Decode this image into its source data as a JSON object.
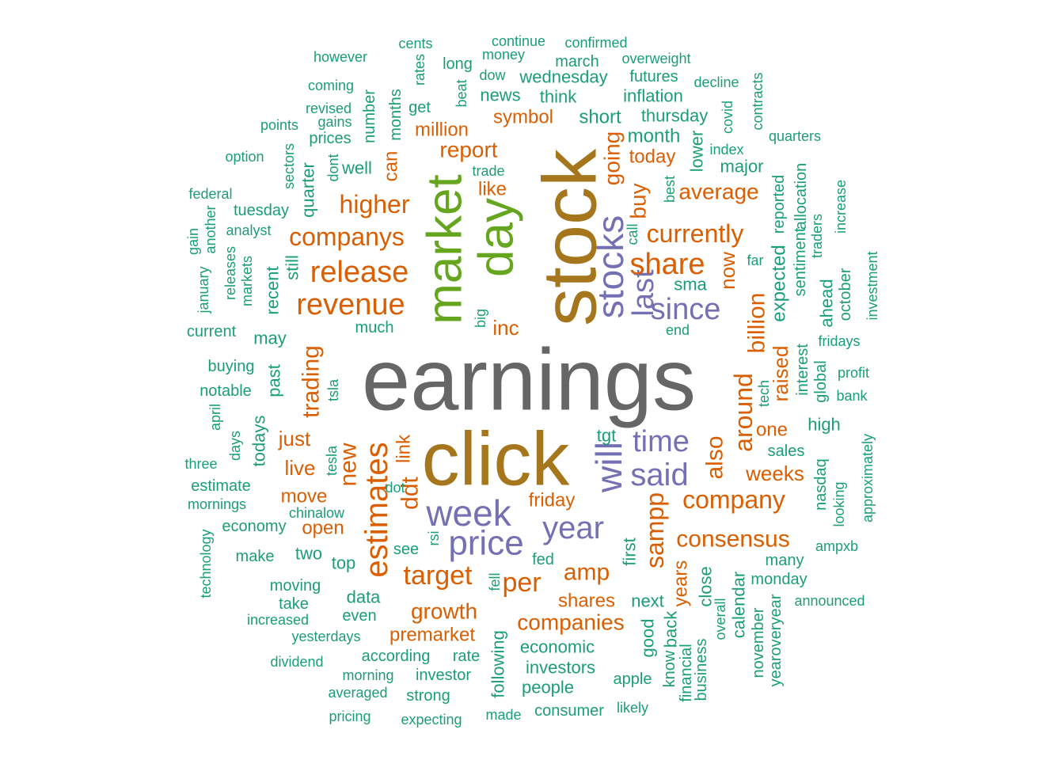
{
  "colors": {
    "gray": "#666666",
    "gold": "#A6761D",
    "green": "#66A61E",
    "purple": "#7570B3",
    "orange": "#D95F02",
    "teal": "#1B9E77"
  },
  "words": [
    {
      "text": "earnings",
      "color": "gray"
    },
    {
      "text": "stock",
      "color": "gold"
    },
    {
      "text": "click",
      "color": "gold"
    },
    {
      "text": "market",
      "color": "green"
    },
    {
      "text": "day",
      "color": "green"
    },
    {
      "text": "stocks",
      "color": "purple"
    },
    {
      "text": "will",
      "color": "purple"
    },
    {
      "text": "week",
      "color": "purple"
    },
    {
      "text": "price",
      "color": "purple"
    },
    {
      "text": "year",
      "color": "purple"
    },
    {
      "text": "said",
      "color": "purple"
    },
    {
      "text": "time",
      "color": "purple"
    },
    {
      "text": "since",
      "color": "purple"
    },
    {
      "text": "last",
      "color": "purple"
    },
    {
      "text": "revenue",
      "color": "orange"
    },
    {
      "text": "release",
      "color": "orange"
    },
    {
      "text": "companys",
      "color": "orange"
    },
    {
      "text": "higher",
      "color": "orange"
    },
    {
      "text": "share",
      "color": "orange"
    },
    {
      "text": "currently",
      "color": "orange"
    },
    {
      "text": "estimates",
      "color": "orange"
    },
    {
      "text": "target",
      "color": "orange"
    },
    {
      "text": "company",
      "color": "orange"
    },
    {
      "text": "consensus",
      "color": "orange"
    },
    {
      "text": "sampp",
      "color": "orange"
    },
    {
      "text": "per",
      "color": "orange"
    },
    {
      "text": "amp",
      "color": "orange"
    },
    {
      "text": "growth",
      "color": "orange"
    },
    {
      "text": "companies",
      "color": "orange"
    },
    {
      "text": "trading",
      "color": "orange"
    },
    {
      "text": "new",
      "color": "orange"
    },
    {
      "text": "ddt",
      "color": "orange"
    },
    {
      "text": "around",
      "color": "orange"
    },
    {
      "text": "billion",
      "color": "orange"
    },
    {
      "text": "also",
      "color": "orange"
    },
    {
      "text": "average",
      "color": "orange"
    },
    {
      "text": "report",
      "color": "orange"
    },
    {
      "text": "million",
      "color": "orange"
    },
    {
      "text": "symbol",
      "color": "orange"
    },
    {
      "text": "like",
      "color": "orange"
    },
    {
      "text": "going",
      "color": "orange"
    },
    {
      "text": "buy",
      "color": "orange"
    },
    {
      "text": "today",
      "color": "orange"
    },
    {
      "text": "now",
      "color": "orange"
    },
    {
      "text": "inc",
      "color": "orange"
    },
    {
      "text": "raised",
      "color": "orange"
    },
    {
      "text": "one",
      "color": "orange"
    },
    {
      "text": "weeks",
      "color": "orange"
    },
    {
      "text": "just",
      "color": "orange"
    },
    {
      "text": "live",
      "color": "orange"
    },
    {
      "text": "move",
      "color": "orange"
    },
    {
      "text": "open",
      "color": "orange"
    },
    {
      "text": "link",
      "color": "orange"
    },
    {
      "text": "friday",
      "color": "orange"
    },
    {
      "text": "shares",
      "color": "orange"
    },
    {
      "text": "premarket",
      "color": "orange"
    },
    {
      "text": "years",
      "color": "orange"
    },
    {
      "text": "can",
      "color": "orange"
    },
    {
      "text": "month",
      "color": "teal"
    },
    {
      "text": "thursday",
      "color": "teal"
    },
    {
      "text": "short",
      "color": "teal"
    },
    {
      "text": "inflation",
      "color": "teal"
    },
    {
      "text": "futures",
      "color": "teal"
    },
    {
      "text": "wednesday",
      "color": "teal"
    },
    {
      "text": "think",
      "color": "teal"
    },
    {
      "text": "news",
      "color": "teal"
    },
    {
      "text": "march",
      "color": "teal"
    },
    {
      "text": "overweight",
      "color": "teal"
    },
    {
      "text": "confirmed",
      "color": "teal"
    },
    {
      "text": "continue",
      "color": "teal"
    },
    {
      "text": "money",
      "color": "teal"
    },
    {
      "text": "dow",
      "color": "teal"
    },
    {
      "text": "long",
      "color": "teal"
    },
    {
      "text": "cents",
      "color": "teal"
    },
    {
      "text": "however",
      "color": "teal"
    },
    {
      "text": "coming",
      "color": "teal"
    },
    {
      "text": "revised",
      "color": "teal"
    },
    {
      "text": "gains",
      "color": "teal"
    },
    {
      "text": "points",
      "color": "teal"
    },
    {
      "text": "prices",
      "color": "teal"
    },
    {
      "text": "option",
      "color": "teal"
    },
    {
      "text": "well",
      "color": "teal"
    },
    {
      "text": "federal",
      "color": "teal"
    },
    {
      "text": "tuesday",
      "color": "teal"
    },
    {
      "text": "analyst",
      "color": "teal"
    },
    {
      "text": "decline",
      "color": "teal"
    },
    {
      "text": "index",
      "color": "teal"
    },
    {
      "text": "major",
      "color": "teal"
    },
    {
      "text": "quarters",
      "color": "teal"
    },
    {
      "text": "trade",
      "color": "teal"
    },
    {
      "text": "sma",
      "color": "teal"
    },
    {
      "text": "far",
      "color": "teal"
    },
    {
      "text": "end",
      "color": "teal"
    },
    {
      "text": "fridays",
      "color": "teal"
    },
    {
      "text": "profit",
      "color": "teal"
    },
    {
      "text": "bank",
      "color": "teal"
    },
    {
      "text": "current",
      "color": "teal"
    },
    {
      "text": "may",
      "color": "teal"
    },
    {
      "text": "much",
      "color": "teal"
    },
    {
      "text": "buying",
      "color": "teal"
    },
    {
      "text": "notable",
      "color": "teal"
    },
    {
      "text": "high",
      "color": "teal"
    },
    {
      "text": "sales",
      "color": "teal"
    },
    {
      "text": "tgt",
      "color": "teal"
    },
    {
      "text": "three",
      "color": "teal"
    },
    {
      "text": "estimate",
      "color": "teal"
    },
    {
      "text": "mornings",
      "color": "teal"
    },
    {
      "text": "chinalow",
      "color": "teal"
    },
    {
      "text": "economy",
      "color": "teal"
    },
    {
      "text": "dot",
      "color": "teal"
    },
    {
      "text": "make",
      "color": "teal"
    },
    {
      "text": "two",
      "color": "teal"
    },
    {
      "text": "top",
      "color": "teal"
    },
    {
      "text": "see",
      "color": "teal"
    },
    {
      "text": "fed",
      "color": "teal"
    },
    {
      "text": "ampxb",
      "color": "teal"
    },
    {
      "text": "many",
      "color": "teal"
    },
    {
      "text": "monday",
      "color": "teal"
    },
    {
      "text": "announced",
      "color": "teal"
    },
    {
      "text": "moving",
      "color": "teal"
    },
    {
      "text": "take",
      "color": "teal"
    },
    {
      "text": "data",
      "color": "teal"
    },
    {
      "text": "next",
      "color": "teal"
    },
    {
      "text": "increased",
      "color": "teal"
    },
    {
      "text": "even",
      "color": "teal"
    },
    {
      "text": "yesterdays",
      "color": "teal"
    },
    {
      "text": "economic",
      "color": "teal"
    },
    {
      "text": "dividend",
      "color": "teal"
    },
    {
      "text": "according",
      "color": "teal"
    },
    {
      "text": "rate",
      "color": "teal"
    },
    {
      "text": "investors",
      "color": "teal"
    },
    {
      "text": "morning",
      "color": "teal"
    },
    {
      "text": "investor",
      "color": "teal"
    },
    {
      "text": "people",
      "color": "teal"
    },
    {
      "text": "apple",
      "color": "teal"
    },
    {
      "text": "averaged",
      "color": "teal"
    },
    {
      "text": "strong",
      "color": "teal"
    },
    {
      "text": "pricing",
      "color": "teal"
    },
    {
      "text": "expecting",
      "color": "teal"
    },
    {
      "text": "made",
      "color": "teal"
    },
    {
      "text": "consumer",
      "color": "teal"
    },
    {
      "text": "likely",
      "color": "teal"
    },
    {
      "text": "rates",
      "color": "teal"
    },
    {
      "text": "beat",
      "color": "teal"
    },
    {
      "text": "get",
      "color": "teal"
    },
    {
      "text": "months",
      "color": "teal"
    },
    {
      "text": "number",
      "color": "teal"
    },
    {
      "text": "dont",
      "color": "teal"
    },
    {
      "text": "quarter",
      "color": "teal"
    },
    {
      "text": "sectors",
      "color": "teal"
    },
    {
      "text": "covid",
      "color": "teal"
    },
    {
      "text": "contracts",
      "color": "teal"
    },
    {
      "text": "lower",
      "color": "teal"
    },
    {
      "text": "best",
      "color": "teal"
    },
    {
      "text": "call",
      "color": "teal"
    },
    {
      "text": "reported",
      "color": "teal"
    },
    {
      "text": "allocation",
      "color": "teal"
    },
    {
      "text": "sentiment",
      "color": "teal"
    },
    {
      "text": "traders",
      "color": "teal"
    },
    {
      "text": "increase",
      "color": "teal"
    },
    {
      "text": "expected",
      "color": "teal"
    },
    {
      "text": "ahead",
      "color": "teal"
    },
    {
      "text": "october",
      "color": "teal"
    },
    {
      "text": "investment",
      "color": "teal"
    },
    {
      "text": "interest",
      "color": "teal"
    },
    {
      "text": "global",
      "color": "teal"
    },
    {
      "text": "tech",
      "color": "teal"
    },
    {
      "text": "big",
      "color": "teal"
    },
    {
      "text": "gain",
      "color": "teal"
    },
    {
      "text": "another",
      "color": "teal"
    },
    {
      "text": "january",
      "color": "teal"
    },
    {
      "text": "releases",
      "color": "teal"
    },
    {
      "text": "markets",
      "color": "teal"
    },
    {
      "text": "recent",
      "color": "teal"
    },
    {
      "text": "still",
      "color": "teal"
    },
    {
      "text": "past",
      "color": "teal"
    },
    {
      "text": "tsla",
      "color": "teal"
    },
    {
      "text": "april",
      "color": "teal"
    },
    {
      "text": "todays",
      "color": "teal"
    },
    {
      "text": "days",
      "color": "teal"
    },
    {
      "text": "tesla",
      "color": "teal"
    },
    {
      "text": "approximately",
      "color": "teal"
    },
    {
      "text": "nasdaq",
      "color": "teal"
    },
    {
      "text": "looking",
      "color": "teal"
    },
    {
      "text": "technology",
      "color": "teal"
    },
    {
      "text": "rsi",
      "color": "teal"
    },
    {
      "text": "fell",
      "color": "teal"
    },
    {
      "text": "first",
      "color": "teal"
    },
    {
      "text": "close",
      "color": "teal"
    },
    {
      "text": "calendar",
      "color": "teal"
    },
    {
      "text": "overall",
      "color": "teal"
    },
    {
      "text": "november",
      "color": "teal"
    },
    {
      "text": "yearoveryear",
      "color": "teal"
    },
    {
      "text": "good",
      "color": "teal"
    },
    {
      "text": "back",
      "color": "teal"
    },
    {
      "text": "know",
      "color": "teal"
    },
    {
      "text": "financial",
      "color": "teal"
    },
    {
      "text": "business",
      "color": "teal"
    },
    {
      "text": "following",
      "color": "teal"
    }
  ]
}
